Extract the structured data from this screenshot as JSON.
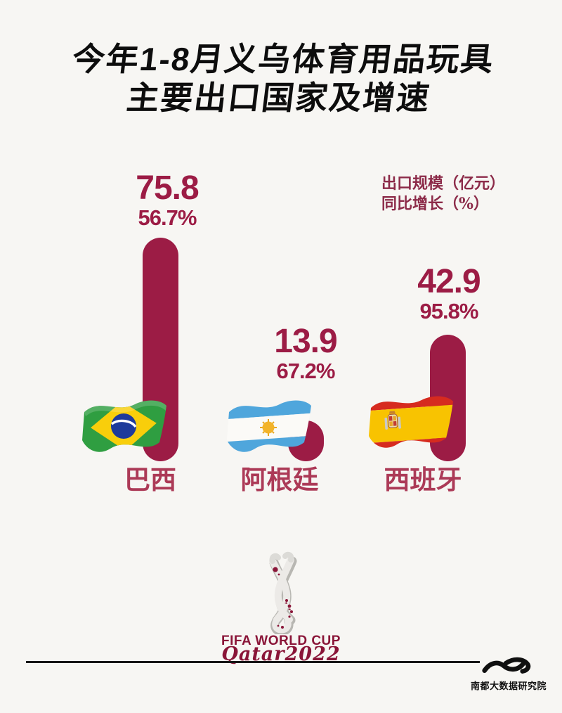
{
  "title": {
    "line1": "今年1-8月义乌体育用品玩具",
    "line2": "主要出口国家及增速"
  },
  "legend": {
    "line1": "出口规模（亿元）",
    "line2": "同比增长（%）"
  },
  "chart_data": {
    "type": "bar",
    "title": "今年1-8月义乌体育用品玩具主要出口国家及增速",
    "categories": [
      "巴西",
      "阿根廷",
      "西班牙"
    ],
    "series": [
      {
        "name": "出口规模（亿元）",
        "values": [
          75.8,
          13.9,
          42.9
        ]
      },
      {
        "name": "同比增长（%）",
        "values": [
          56.7,
          67.2,
          95.8
        ]
      }
    ],
    "orientation": "vertical",
    "ylim": [
      0,
      80
    ],
    "grid": false,
    "legend_position": "top-right",
    "bar_style": "rounded-capsule"
  },
  "countries": [
    {
      "name": "巴西",
      "flag_icon": "brazil-flag-icon",
      "export_value": "75.8",
      "growth": "56.7%"
    },
    {
      "name": "阿根廷",
      "flag_icon": "argentina-flag-icon",
      "export_value": "13.9",
      "growth": "67.2%"
    },
    {
      "name": "西班牙",
      "flag_icon": "spain-flag-icon",
      "export_value": "42.9",
      "growth": "95.8%"
    }
  ],
  "footer": {
    "fifa_line1": "FIFA WORLD CUP",
    "fifa_line2": "Qatar2022",
    "emblem_icon": "fifa-world-cup-qatar-2022-emblem",
    "publisher": "南都大数据研究院",
    "publisher_icon": "nandu-wave-logo"
  },
  "colors": {
    "background": "#f7f6f3",
    "bar": "#9c1c45",
    "value_text": "#9c1c45",
    "title_text": "#0d0d0d",
    "legend_text": "#8c2b49",
    "country_label_text": "#ac3a57",
    "fifa_maroon": "#8a1538",
    "rule_line": "#161616"
  }
}
